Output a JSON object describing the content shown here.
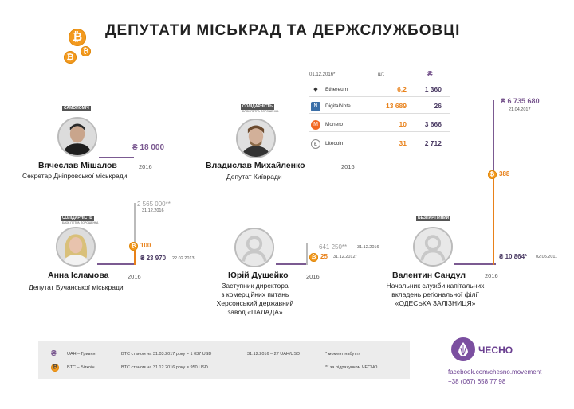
{
  "title": "ДЕПУТАТИ МІСЬКРАД ТА ДЕРЖСЛУЖБОВЦІ",
  "currency_symbol": "₴",
  "btc_symbol": "₿",
  "colors": {
    "purple": "#7b5a91",
    "orange": "#e8811a",
    "grey": "#aaaaaa"
  },
  "crypto_table": {
    "date": "01.12.2016*",
    "col_qty": "шт.",
    "col_uah": "₴",
    "rows": [
      {
        "name": "Ethereum",
        "qty": "6,2",
        "rate": "1 360",
        "icon": "ethereum-icon"
      },
      {
        "name": "DigitalNote",
        "qty": "13 689",
        "rate": "26",
        "icon": "digitalnote-icon"
      },
      {
        "name": "Monero",
        "qty": "10",
        "rate": "3 666",
        "icon": "monero-icon"
      },
      {
        "name": "Litecoin",
        "qty": "31",
        "rate": "2 712",
        "icon": "litecoin-icon"
      }
    ]
  },
  "persons": [
    {
      "name": "Вячеслав Мішалов",
      "position": [
        "Секретар Дніпровської міськради"
      ],
      "year": "2016",
      "badge": "САМОПОМІЧ",
      "uah": "18 000"
    },
    {
      "name": "Владислав Михайленко",
      "position": [
        "Депутат Київради"
      ],
      "year": "2016",
      "badge": "СОЛІДАРНІСТЬ",
      "badge_sub": "БЛОК ПЕТРА ПОРОШЕНКА"
    },
    {
      "name": "Анна Ісламова",
      "position": [
        "Депутат Бучанської міськради"
      ],
      "year": "2016",
      "badge": "СОЛІДАРНІСТЬ",
      "badge_sub": "БЛОК ПЕТРА ПОРОШЕНКА",
      "grey_val": "2 565 000**",
      "grey_date": "31.12.2016",
      "btc": "100",
      "uah": "23 970",
      "uah_date": "22.02.2013"
    },
    {
      "name": "Юрій Душейко",
      "position": [
        "Заступник директора",
        "з комерційних питань",
        "Херсонський державний",
        "завод «ПАЛАДА»"
      ],
      "year": "2016",
      "grey_val": "641 250**",
      "grey_date": "31.12.2016",
      "btc": "25",
      "btc_date": "31.12.2012*"
    },
    {
      "name": "Валентин Сандул",
      "position": [
        "Начальник служби капітальних",
        "вкладень регіональної філії",
        "«ОДЕСЬКА ЗАЛІЗНИЦЯ»"
      ],
      "year": "2016",
      "badge": "БЕЗПАРТІЙНИЙ",
      "top_val": "6 735 680",
      "top_date": "21.04.2017",
      "btc": "388",
      "uah": "10 864*",
      "uah_date": "02.05.2011"
    }
  ],
  "legend": {
    "uah_label": "UAH – Гривня",
    "btc_label": "BTC – Біткоїн",
    "rate1": "BTC станом на 31.03.2017 року = 1 037 USD",
    "rate2": "BTC станом на 31.12.2016 року = 950 USD",
    "rate3": "31.12.2016 – 27 UAH/USD",
    "note1": "*  момент набуття",
    "note2": "** за підрахунком ЧЕСНО"
  },
  "brand": {
    "name": "ЧЕСНО",
    "facebook": "facebook.com/chesno.movement",
    "phone": "+38 (067) 658 77 98"
  }
}
